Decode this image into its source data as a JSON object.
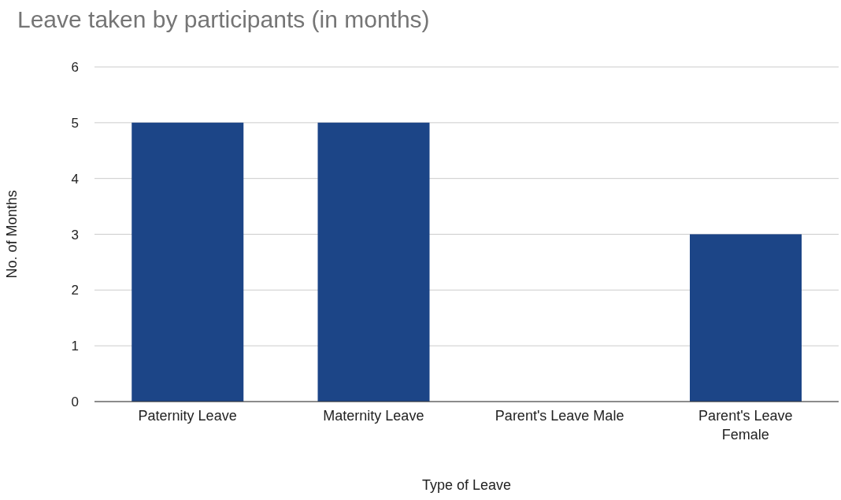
{
  "chart_data": {
    "type": "bar",
    "title": "Leave taken by participants (in months)",
    "xlabel": "Type of Leave",
    "ylabel": "No. of Months",
    "categories": [
      "Paternity Leave",
      "Maternity Leave",
      "Parent's Leave Male",
      "Parent's Leave Female"
    ],
    "values": [
      5,
      5,
      0,
      3
    ],
    "color": "#1c4587",
    "ylim": [
      0,
      6
    ],
    "yticks": [
      0,
      1,
      2,
      3,
      4,
      5,
      6
    ],
    "grid": "y"
  }
}
